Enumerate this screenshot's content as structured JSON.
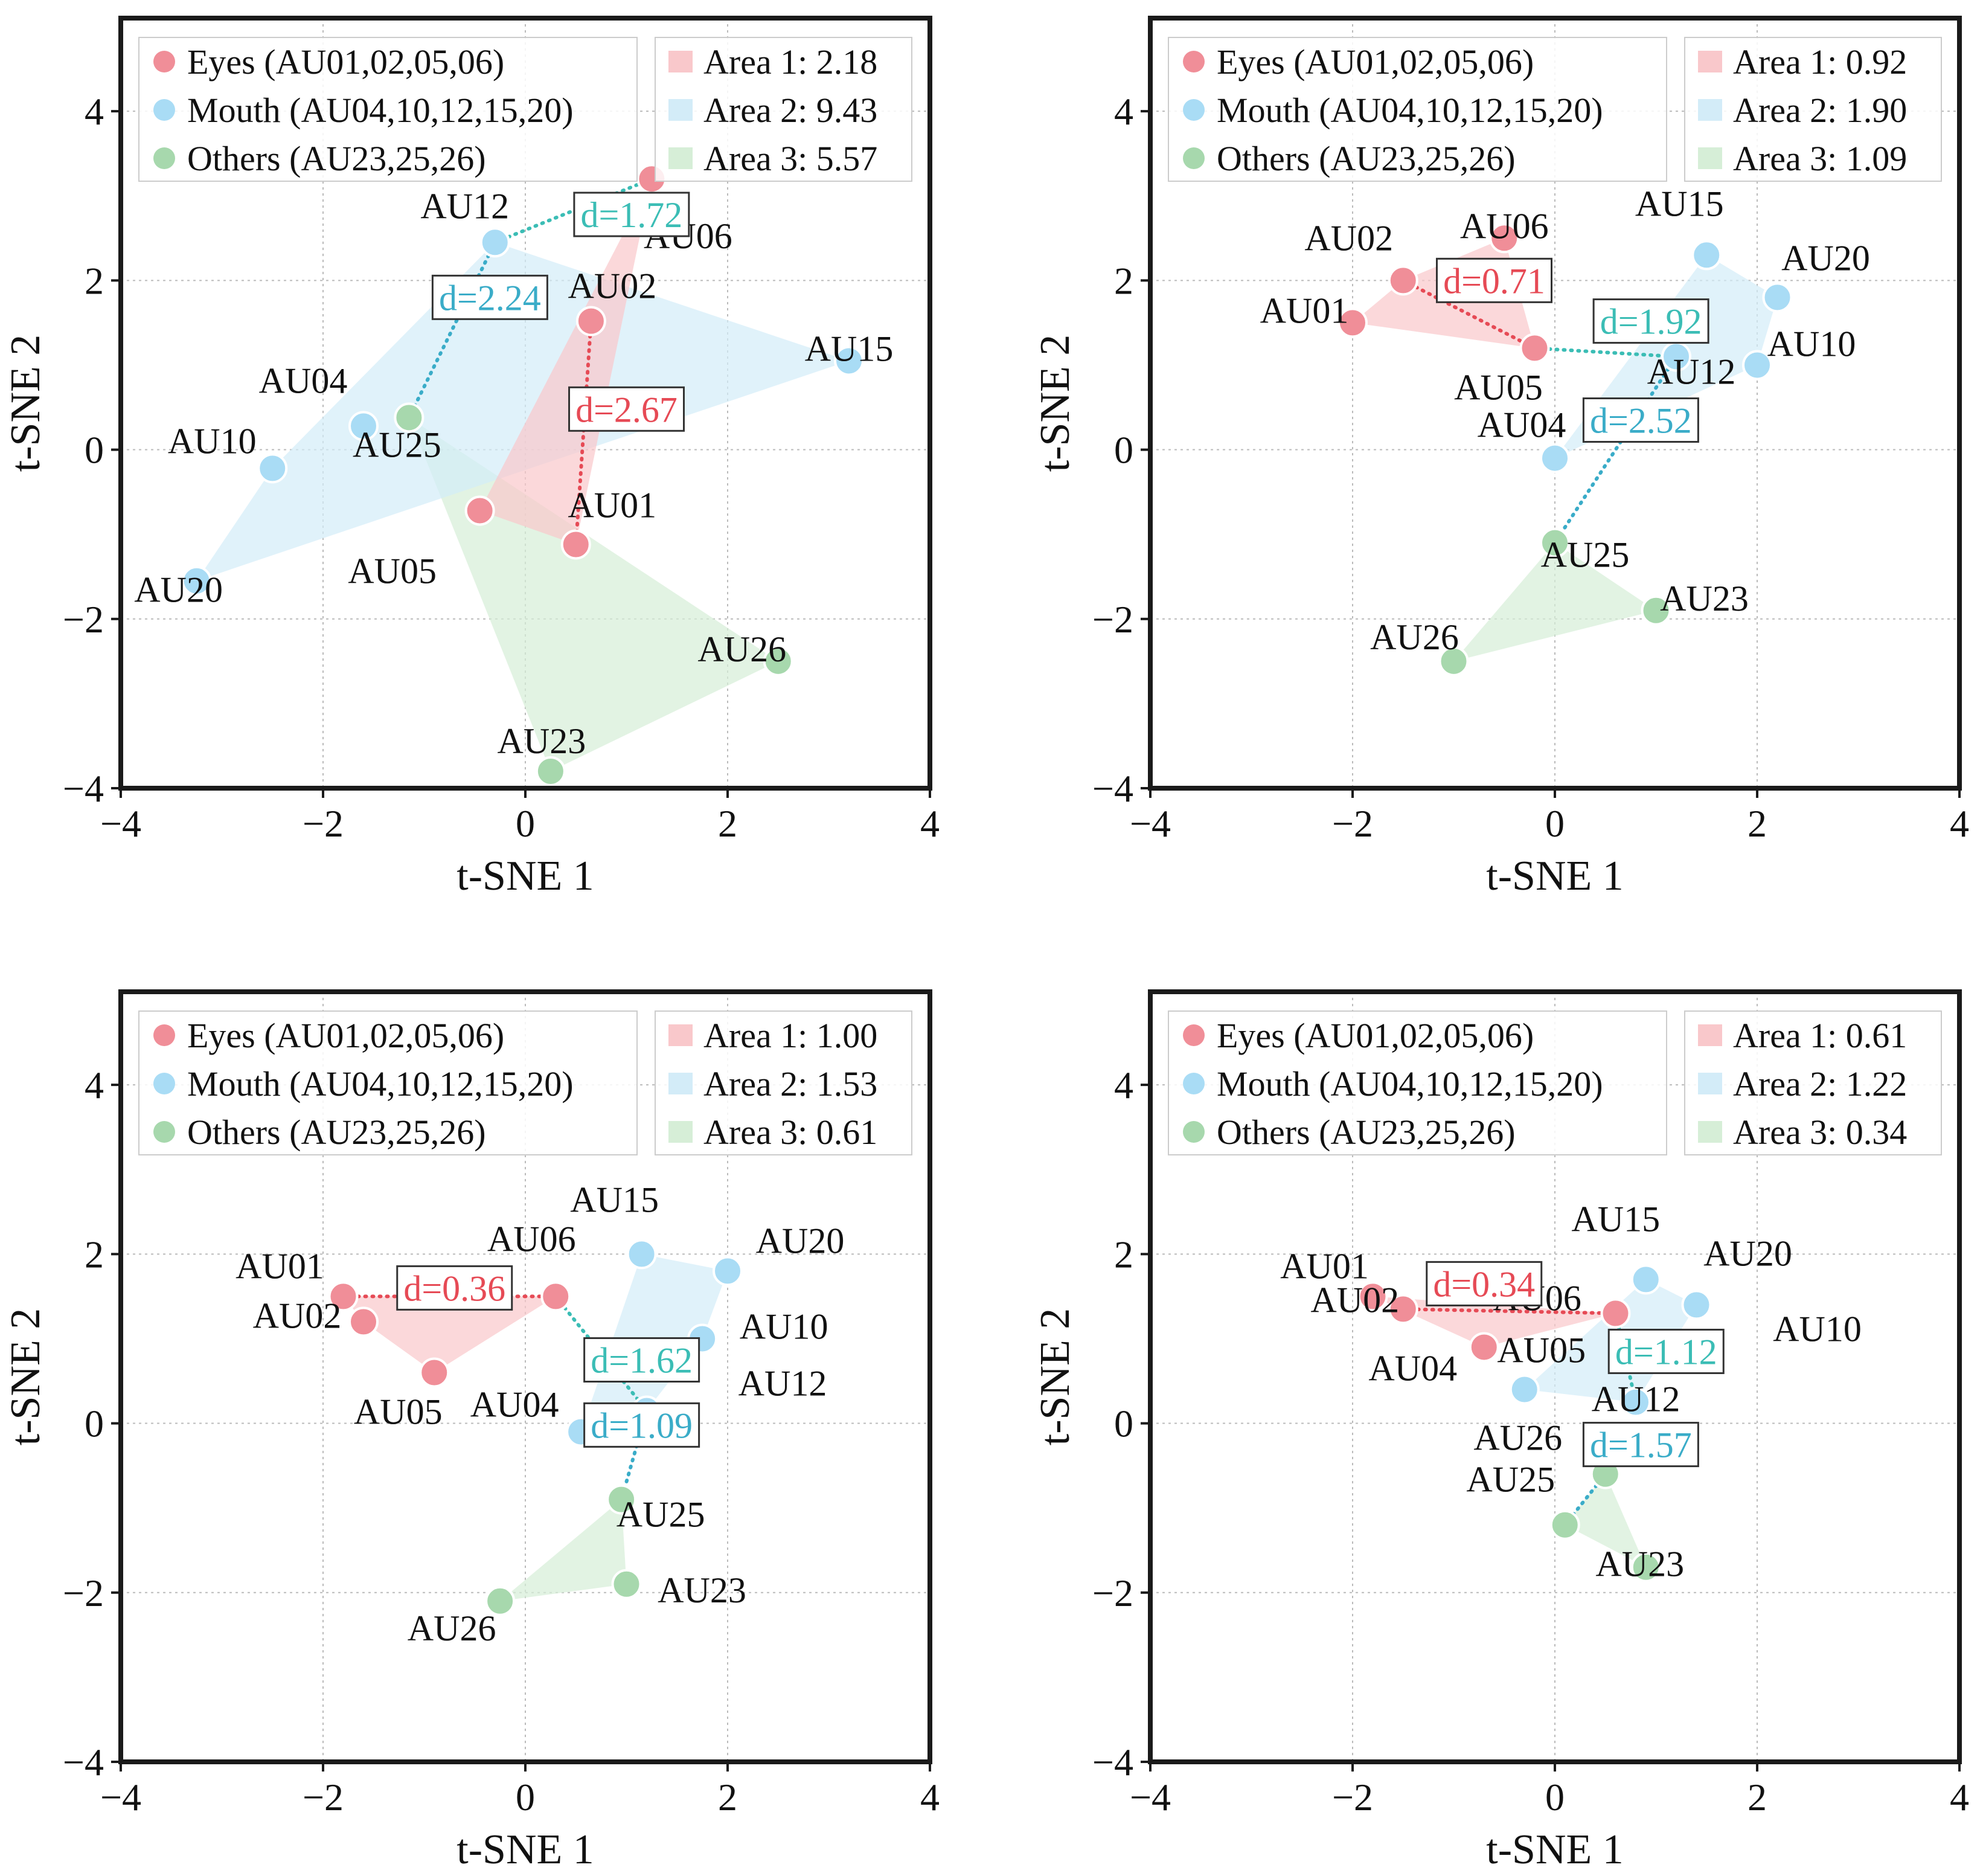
{
  "colors": {
    "eyes": "#f08e98",
    "mouth": "#a9dcf5",
    "others": "#a7d8ad",
    "eyes_area": "#f9c8cb",
    "mouth_area": "#d3ecf8",
    "others_area": "#d6eed7",
    "eyes_text": "#e64a55",
    "mouth_text": "#3aacc8",
    "teal_text": "#3bbdb5",
    "frame": "#1a1a1a"
  },
  "chart_data": [
    {
      "type": "scatter",
      "xlabel": "t-SNE 1",
      "ylabel": "t-SNE 2",
      "xlim": [
        -4,
        4
      ],
      "ylim": [
        -4,
        5.1
      ],
      "xticks": [
        -4,
        -2,
        0,
        2,
        4
      ],
      "yticks": [
        -4,
        -2,
        0,
        2,
        4
      ],
      "tick_labels": [
        "−4",
        "−2",
        "0",
        "2",
        "4"
      ],
      "grid": true,
      "legend_position": "top-left",
      "area_legend_position": "top-right",
      "legend": [
        "Eyes (AU01,02,05,06)",
        "Mouth (AU04,10,12,15,20)",
        "Others (AU23,25,26)"
      ],
      "area_legend": [
        "Area 1: 2.18",
        "Area 2: 9.43",
        "Area 3: 5.57"
      ],
      "points": [
        {
          "label": "AU01",
          "group": "eyes",
          "x": 0.5,
          "y": -1.12
        },
        {
          "label": "AU02",
          "group": "eyes",
          "x": 0.65,
          "y": 1.52
        },
        {
          "label": "AU05",
          "group": "eyes",
          "x": -0.45,
          "y": -0.72
        },
        {
          "label": "AU06",
          "group": "eyes",
          "x": 1.25,
          "y": 3.2
        },
        {
          "label": "AU04",
          "group": "mouth",
          "x": -1.6,
          "y": 0.28
        },
        {
          "label": "AU10",
          "group": "mouth",
          "x": -2.5,
          "y": -0.22
        },
        {
          "label": "AU12",
          "group": "mouth",
          "x": -0.3,
          "y": 2.45
        },
        {
          "label": "AU15",
          "group": "mouth",
          "x": 3.2,
          "y": 1.05
        },
        {
          "label": "AU20",
          "group": "mouth",
          "x": -3.25,
          "y": -1.55
        },
        {
          "label": "AU23",
          "group": "others",
          "x": 0.25,
          "y": -3.8
        },
        {
          "label": "AU25",
          "group": "others",
          "x": -1.15,
          "y": 0.38
        },
        {
          "label": "AU26",
          "group": "others",
          "x": 2.5,
          "y": -2.5
        }
      ],
      "distances": [
        {
          "label": "d=1.72",
          "from": "AU12",
          "to": "AU06",
          "color": "teal"
        },
        {
          "label": "d=2.24",
          "from": "AU12",
          "to": "AU25",
          "color": "mouth"
        },
        {
          "label": "d=2.67",
          "from": "AU02",
          "to": "AU01",
          "color": "eyes"
        }
      ]
    },
    {
      "type": "scatter",
      "xlabel": "t-SNE 1",
      "ylabel": "t-SNE 2",
      "xlim": [
        -4,
        4
      ],
      "ylim": [
        -4,
        5.1
      ],
      "xticks": [
        -4,
        -2,
        0,
        2,
        4
      ],
      "yticks": [
        -4,
        -2,
        0,
        2,
        4
      ],
      "tick_labels": [
        "−4",
        "−2",
        "0",
        "2",
        "4"
      ],
      "grid": true,
      "legend_position": "top-left",
      "area_legend_position": "top-right",
      "legend": [
        "Eyes (AU01,02,05,06)",
        "Mouth (AU04,10,12,15,20)",
        "Others (AU23,25,26)"
      ],
      "area_legend": [
        "Area 1: 0.92",
        "Area 2: 1.90",
        "Area 3: 1.09"
      ],
      "points": [
        {
          "label": "AU01",
          "group": "eyes",
          "x": -2.0,
          "y": 1.5
        },
        {
          "label": "AU02",
          "group": "eyes",
          "x": -1.5,
          "y": 2.0
        },
        {
          "label": "AU05",
          "group": "eyes",
          "x": -0.2,
          "y": 1.2
        },
        {
          "label": "AU06",
          "group": "eyes",
          "x": -0.5,
          "y": 2.5
        },
        {
          "label": "AU04",
          "group": "mouth",
          "x": 0.0,
          "y": -0.1
        },
        {
          "label": "AU10",
          "group": "mouth",
          "x": 2.0,
          "y": 1.0
        },
        {
          "label": "AU12",
          "group": "mouth",
          "x": 1.2,
          "y": 1.1
        },
        {
          "label": "AU15",
          "group": "mouth",
          "x": 1.5,
          "y": 2.3
        },
        {
          "label": "AU20",
          "group": "mouth",
          "x": 2.2,
          "y": 1.8
        },
        {
          "label": "AU23",
          "group": "others",
          "x": 1.0,
          "y": -1.9
        },
        {
          "label": "AU25",
          "group": "others",
          "x": 0.0,
          "y": -1.1
        },
        {
          "label": "AU26",
          "group": "others",
          "x": -1.0,
          "y": -2.5
        }
      ],
      "distances": [
        {
          "label": "d=0.71",
          "from": "AU02",
          "to": "AU05",
          "color": "eyes"
        },
        {
          "label": "d=1.92",
          "from": "AU05",
          "to": "AU12",
          "color": "teal"
        },
        {
          "label": "d=2.52",
          "from": "AU12",
          "to": "AU25",
          "color": "mouth"
        }
      ]
    },
    {
      "type": "scatter",
      "xlabel": "t-SNE 1",
      "ylabel": "t-SNE 2",
      "xlim": [
        -4,
        4
      ],
      "ylim": [
        -4,
        5.1
      ],
      "xticks": [
        -4,
        -2,
        0,
        2,
        4
      ],
      "yticks": [
        -4,
        -2,
        0,
        2,
        4
      ],
      "tick_labels": [
        "−4",
        "−2",
        "0",
        "2",
        "4"
      ],
      "grid": true,
      "legend_position": "top-left",
      "area_legend_position": "top-right",
      "legend": [
        "Eyes (AU01,02,05,06)",
        "Mouth (AU04,10,12,15,20)",
        "Others (AU23,25,26)"
      ],
      "area_legend": [
        "Area 1: 1.00",
        "Area 2: 1.53",
        "Area 3: 0.61"
      ],
      "points": [
        {
          "label": "AU01",
          "group": "eyes",
          "x": -1.8,
          "y": 1.5
        },
        {
          "label": "AU02",
          "group": "eyes",
          "x": -1.6,
          "y": 1.2
        },
        {
          "label": "AU05",
          "group": "eyes",
          "x": -0.9,
          "y": 0.6
        },
        {
          "label": "AU06",
          "group": "eyes",
          "x": 0.3,
          "y": 1.5
        },
        {
          "label": "AU04",
          "group": "mouth",
          "x": 0.55,
          "y": -0.1
        },
        {
          "label": "AU10",
          "group": "mouth",
          "x": 1.75,
          "y": 1.0
        },
        {
          "label": "AU12",
          "group": "mouth",
          "x": 1.2,
          "y": 0.15
        },
        {
          "label": "AU15",
          "group": "mouth",
          "x": 1.15,
          "y": 2.0
        },
        {
          "label": "AU20",
          "group": "mouth",
          "x": 2.0,
          "y": 1.8
        },
        {
          "label": "AU23",
          "group": "others",
          "x": 1.0,
          "y": -1.9
        },
        {
          "label": "AU25",
          "group": "others",
          "x": 0.95,
          "y": -0.9
        },
        {
          "label": "AU26",
          "group": "others",
          "x": -0.25,
          "y": -2.1
        }
      ],
      "distances": [
        {
          "label": "d=0.36",
          "from": "AU01",
          "to": "AU06",
          "color": "eyes"
        },
        {
          "label": "d=1.62",
          "from": "AU06",
          "to": "AU12",
          "color": "teal"
        },
        {
          "label": "d=1.09",
          "from": "AU12",
          "to": "AU25",
          "color": "mouth"
        }
      ]
    },
    {
      "type": "scatter",
      "xlabel": "t-SNE 1",
      "ylabel": "t-SNE 2",
      "xlim": [
        -4,
        4
      ],
      "ylim": [
        -4,
        5.1
      ],
      "xticks": [
        -4,
        -2,
        0,
        2,
        4
      ],
      "yticks": [
        -4,
        -2,
        0,
        2,
        4
      ],
      "tick_labels": [
        "−4",
        "−2",
        "0",
        "2",
        "4"
      ],
      "grid": true,
      "legend_position": "top-left",
      "area_legend_position": "top-right",
      "legend": [
        "Eyes (AU01,02,05,06)",
        "Mouth (AU04,10,12,15,20)",
        "Others (AU23,25,26)"
      ],
      "area_legend": [
        "Area 1: 0.61",
        "Area 2: 1.22",
        "Area 3: 0.34"
      ],
      "points": [
        {
          "label": "AU01",
          "group": "eyes",
          "x": -1.8,
          "y": 1.5
        },
        {
          "label": "AU02",
          "group": "eyes",
          "x": -1.5,
          "y": 1.35
        },
        {
          "label": "AU05",
          "group": "eyes",
          "x": -0.7,
          "y": 0.9
        },
        {
          "label": "AU06",
          "group": "eyes",
          "x": 0.6,
          "y": 1.3
        },
        {
          "label": "AU04",
          "group": "mouth",
          "x": -0.3,
          "y": 0.4
        },
        {
          "label": "AU10",
          "group": "mouth",
          "x": 1.4,
          "y": 1.4
        },
        {
          "label": "AU12",
          "group": "mouth",
          "x": 0.8,
          "y": 0.25
        },
        {
          "label": "AU15",
          "group": "mouth",
          "x": 0.9,
          "y": 1.7
        },
        {
          "label": "AU20",
          "group": "mouth",
          "x": 1.4,
          "y": 1.4
        },
        {
          "label": "AU23",
          "group": "others",
          "x": 0.9,
          "y": -1.7
        },
        {
          "label": "AU25",
          "group": "others",
          "x": 0.1,
          "y": -1.2
        },
        {
          "label": "AU26",
          "group": "others",
          "x": 0.5,
          "y": -0.6
        }
      ],
      "distances": [
        {
          "label": "d=0.34",
          "from": "AU02",
          "to": "AU06",
          "color": "eyes"
        },
        {
          "label": "d=1.12",
          "from": "AU06",
          "to": "AU12",
          "color": "teal"
        },
        {
          "label": "d=1.57",
          "from": "AU26",
          "to": "AU25",
          "color": "mouth"
        }
      ]
    }
  ]
}
